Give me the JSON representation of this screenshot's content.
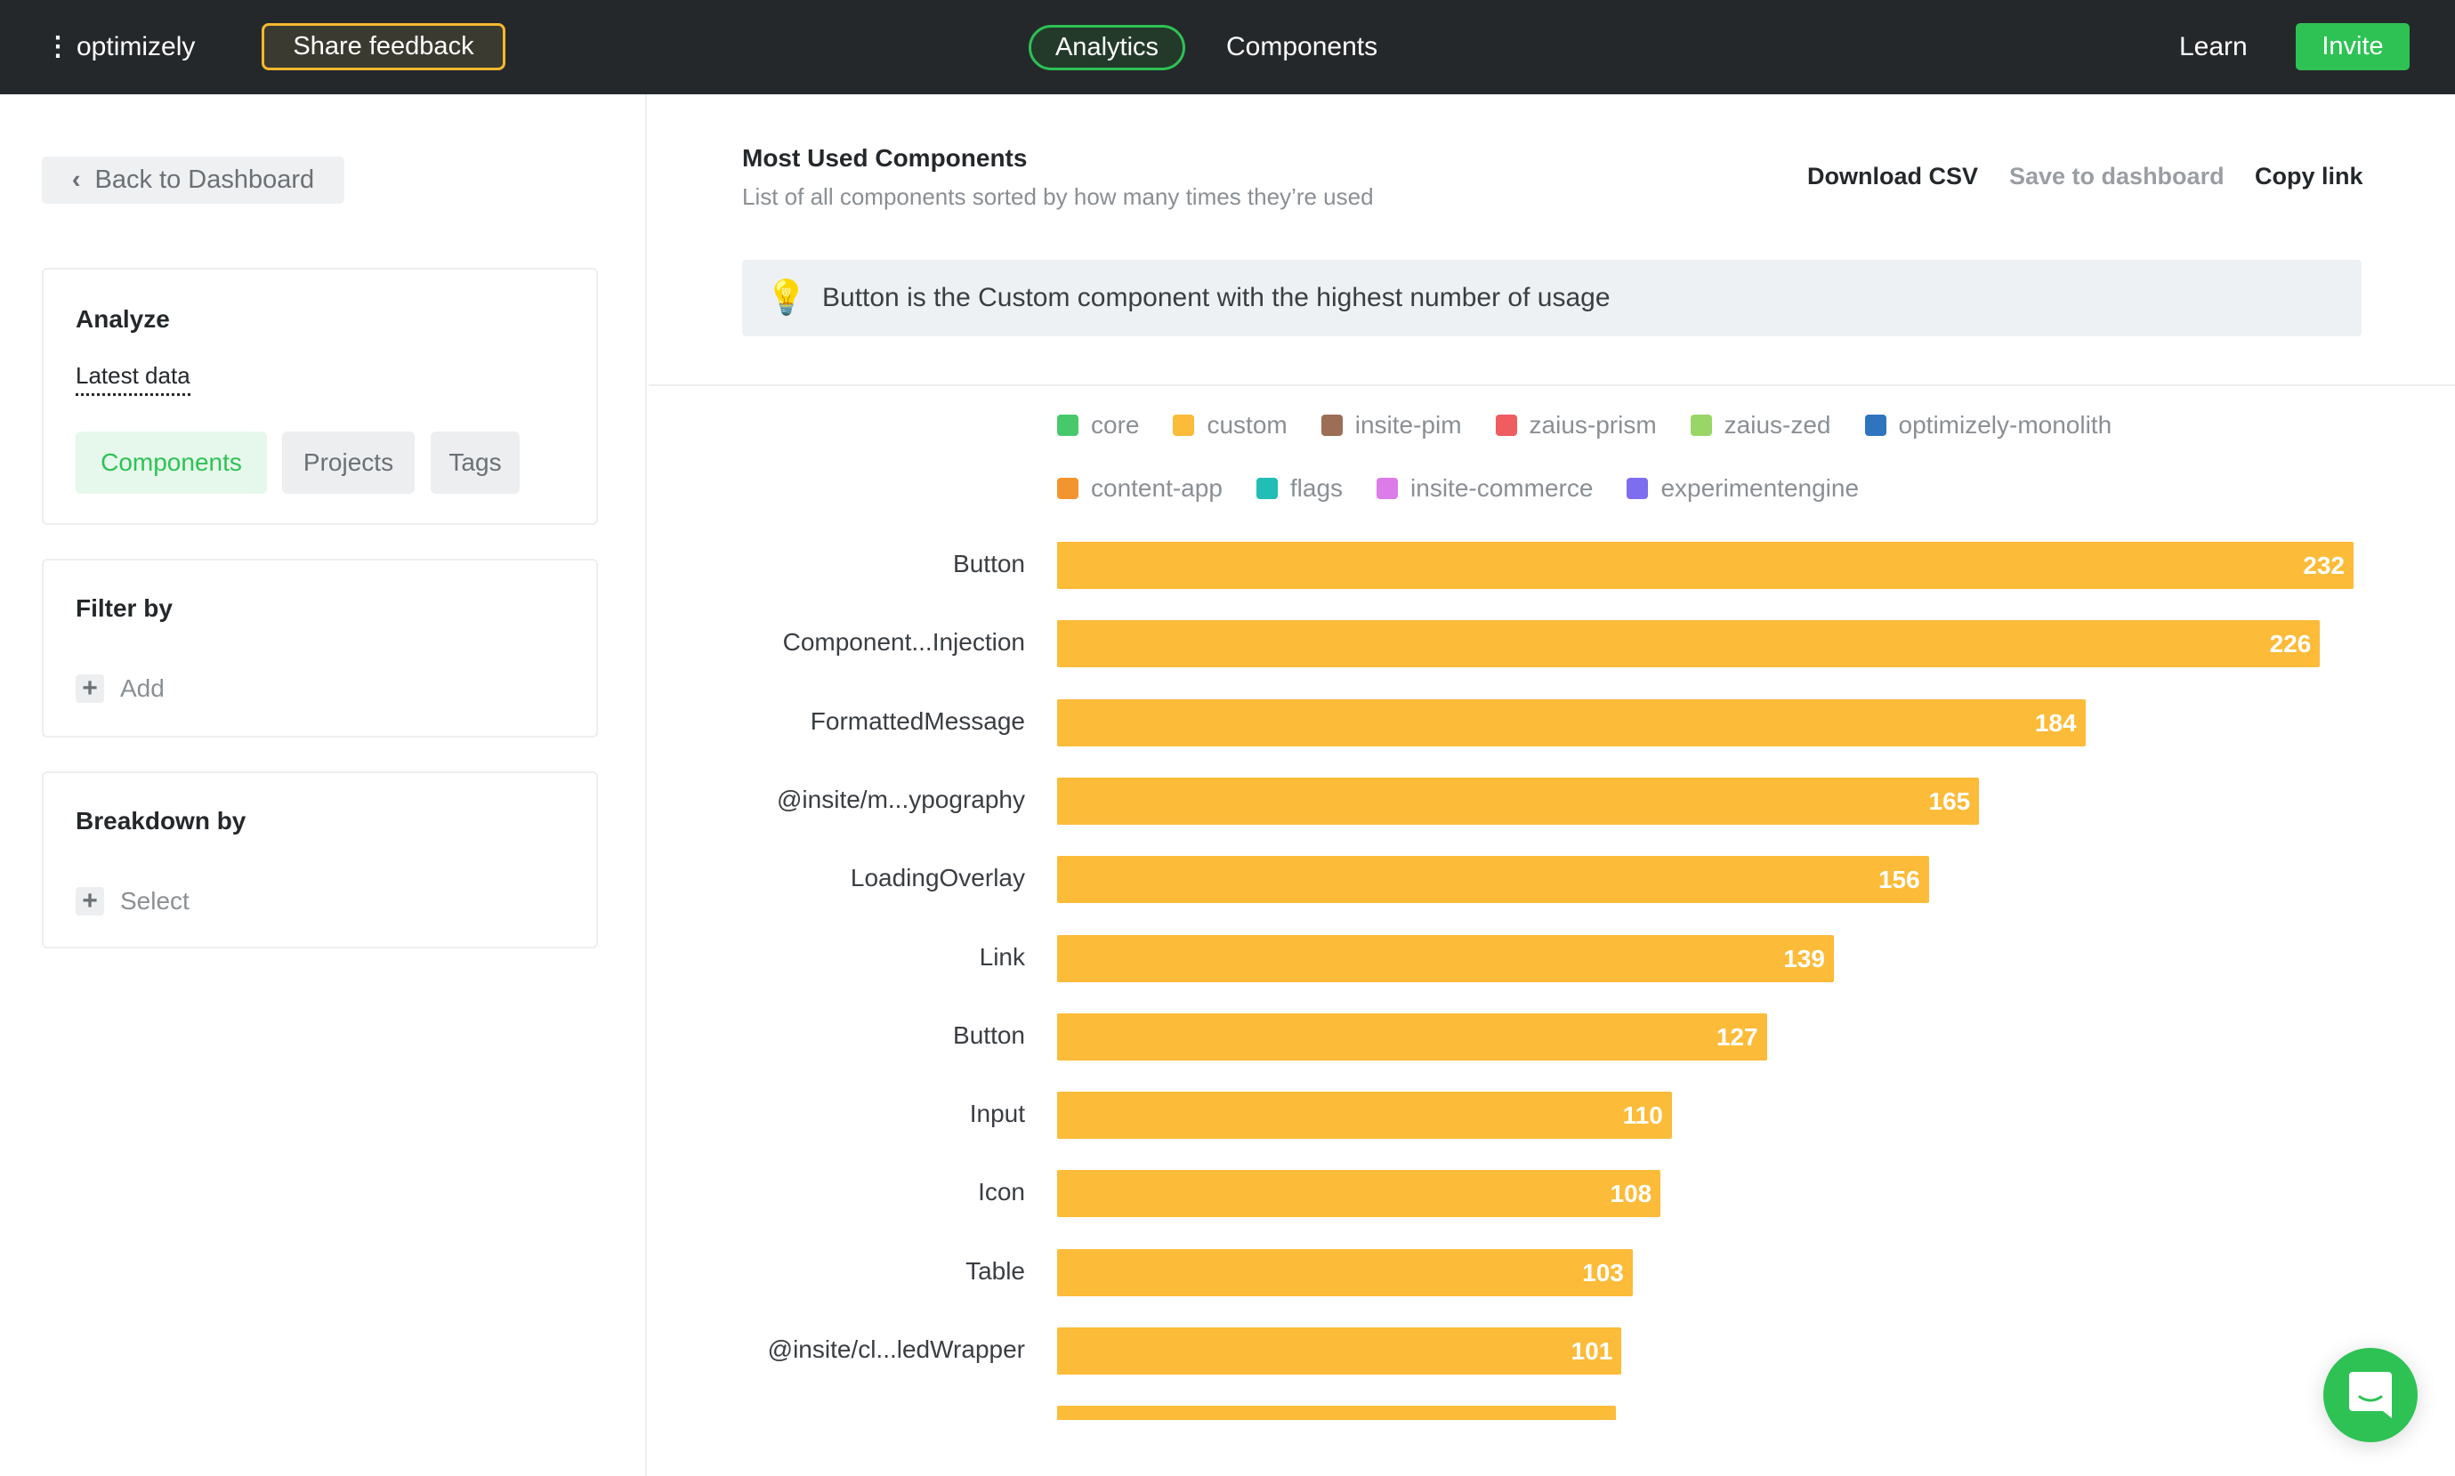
{
  "header": {
    "menu_icon": "vertical-dots-icon",
    "brand": "optimizely",
    "share_feedback": "Share feedback",
    "nav": [
      "Analytics",
      "Components"
    ],
    "active_nav": "Analytics",
    "learn": "Learn",
    "invite": "Invite",
    "colors": {
      "bg": "#25282b",
      "accent": "#2ec254",
      "feedback_border": "#f5b82e"
    }
  },
  "sidebar": {
    "back": "Back to Dashboard",
    "analyze": {
      "title": "Analyze",
      "dataset": "Latest data",
      "tabs": [
        "Components",
        "Projects",
        "Tags"
      ],
      "active_tab": "Components"
    },
    "filter": {
      "title": "Filter by",
      "add": "Add"
    },
    "breakdown": {
      "title": "Breakdown by",
      "select": "Select"
    }
  },
  "main": {
    "title": "Most Used Components",
    "subtitle": "List of all components sorted by how many times they’re used",
    "actions": {
      "download": "Download CSV",
      "save": "Save to dashboard",
      "copy": "Copy link"
    },
    "insight": "Button is the Custom component with the highest number of usage",
    "insight_icon": "lightbulb-icon"
  },
  "chart_data": {
    "type": "bar",
    "orientation": "horizontal",
    "legend": [
      {
        "name": "core",
        "color": "#47c96b"
      },
      {
        "name": "custom",
        "color": "#fcbb38"
      },
      {
        "name": "insite-pim",
        "color": "#9c6e55"
      },
      {
        "name": "zaius-prism",
        "color": "#ef5d60"
      },
      {
        "name": "zaius-zed",
        "color": "#9ad567"
      },
      {
        "name": "optimizely-monolith",
        "color": "#2f74bf"
      },
      {
        "name": "content-app",
        "color": "#f3952f"
      },
      {
        "name": "flags",
        "color": "#22bdb4"
      },
      {
        "name": "insite-commerce",
        "color": "#dc7ce9"
      },
      {
        "name": "experimentengine",
        "color": "#7d6ef0"
      }
    ],
    "legend_placement": "top",
    "series_color": "#fcbb38",
    "categories": [
      "Button",
      "Component...Injection",
      "FormattedMessage",
      "@insite/m...ypography",
      "LoadingOverlay",
      "Link",
      "Button",
      "Input",
      "Icon",
      "Table",
      "@insite/cl...ledWrapper"
    ],
    "values": [
      232,
      226,
      184,
      165,
      156,
      139,
      127,
      110,
      108,
      103,
      101
    ],
    "xlim": [
      0,
      232
    ]
  },
  "chat_icon": "chat-bubble-icon"
}
